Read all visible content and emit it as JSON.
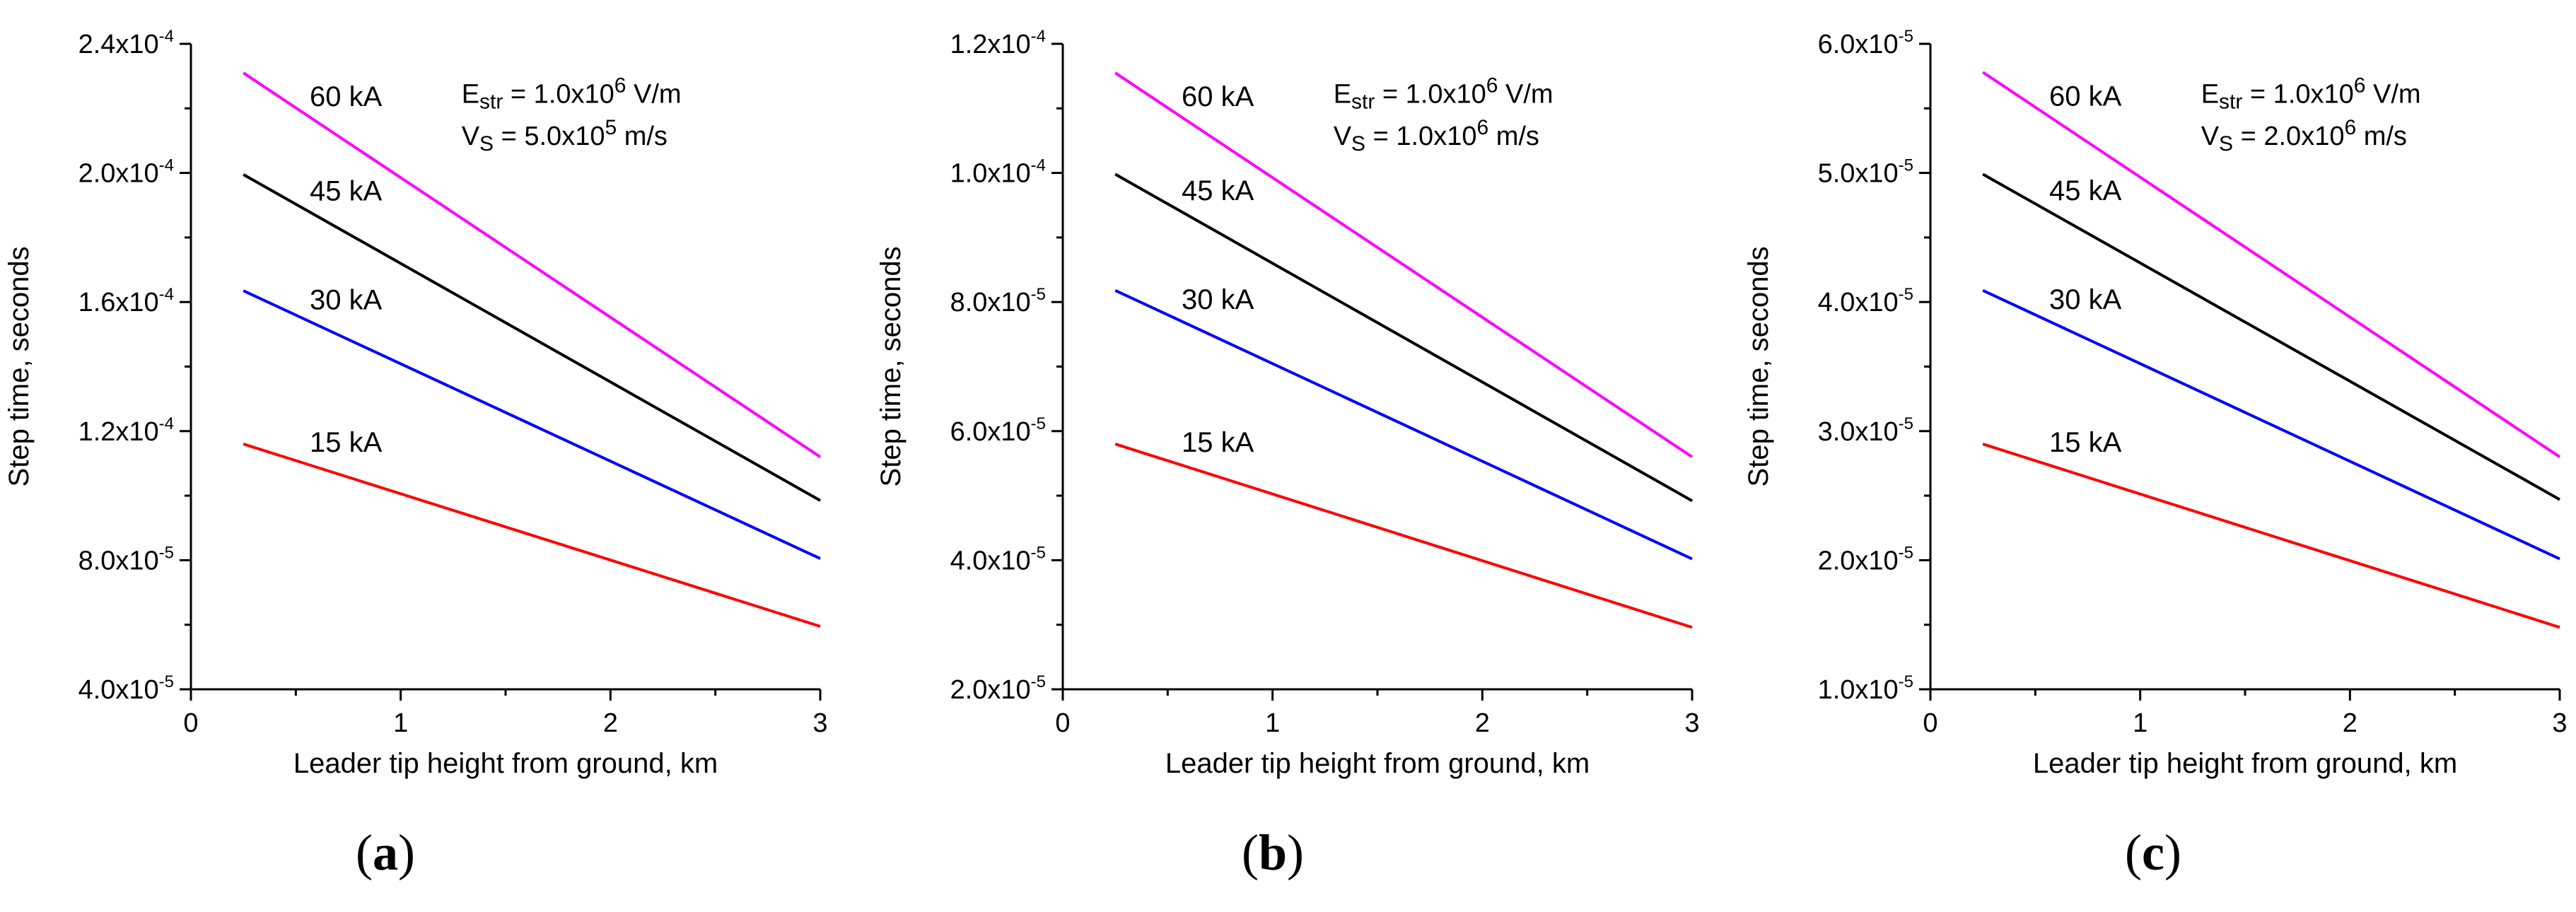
{
  "chart_data": [
    {
      "type": "line",
      "caption_letter": "a",
      "xlabel": "Leader tip height from ground, km",
      "ylabel": "Step time, seconds",
      "xlim": [
        0,
        3
      ],
      "ylim": [
        4e-05,
        0.00024
      ],
      "x_ticks": [
        0,
        1,
        2,
        3
      ],
      "x_tick_labels": [
        "0",
        "1",
        "2",
        "3"
      ],
      "y_ticks": [
        {
          "value": 4e-05,
          "mantissa": "4.0x10",
          "exp": "-5"
        },
        {
          "value": 8e-05,
          "mantissa": "8.0x10",
          "exp": "-5"
        },
        {
          "value": 0.00012,
          "mantissa": "1.2x10",
          "exp": "-4"
        },
        {
          "value": 0.00016,
          "mantissa": "1.6x10",
          "exp": "-4"
        },
        {
          "value": 0.0002,
          "mantissa": "2.0x10",
          "exp": "-4"
        },
        {
          "value": 0.00024,
          "mantissa": "2.4x10",
          "exp": "-4"
        }
      ],
      "annotation": {
        "line1": {
          "var": "E",
          "sub": "str",
          "text": " = 1.0x10",
          "exp": "6",
          "unit": " V/m"
        },
        "line2": {
          "var": "V",
          "sub": "S",
          "text": " = 5.0x10",
          "exp": "5",
          "unit": " m/s"
        }
      },
      "series": [
        {
          "name": "60 kA",
          "color": "#ff00ff",
          "x": [
            0.25,
            3
          ],
          "y": [
            0.000231,
            0.000112
          ]
        },
        {
          "name": "45 kA",
          "color": "#000000",
          "x": [
            0.25,
            3
          ],
          "y": [
            0.0001995,
            9.85e-05
          ]
        },
        {
          "name": "30 kA",
          "color": "#0000ff",
          "x": [
            0.25,
            3
          ],
          "y": [
            0.0001635,
            8.05e-05
          ]
        },
        {
          "name": "15 kA",
          "color": "#ff0000",
          "x": [
            0.25,
            3
          ],
          "y": [
            0.000116,
            5.95e-05
          ]
        }
      ]
    },
    {
      "type": "line",
      "caption_letter": "b",
      "xlabel": "Leader tip height from ground, km",
      "ylabel": "Step time, seconds",
      "xlim": [
        0,
        3
      ],
      "ylim": [
        2e-05,
        0.00012
      ],
      "x_ticks": [
        0,
        1,
        2,
        3
      ],
      "x_tick_labels": [
        "0",
        "1",
        "2",
        "3"
      ],
      "y_ticks": [
        {
          "value": 2e-05,
          "mantissa": "2.0x10",
          "exp": "-5"
        },
        {
          "value": 4e-05,
          "mantissa": "4.0x10",
          "exp": "-5"
        },
        {
          "value": 6e-05,
          "mantissa": "6.0x10",
          "exp": "-5"
        },
        {
          "value": 8e-05,
          "mantissa": "8.0x10",
          "exp": "-5"
        },
        {
          "value": 0.0001,
          "mantissa": "1.0x10",
          "exp": "-4"
        },
        {
          "value": 0.00012,
          "mantissa": "1.2x10",
          "exp": "-4"
        }
      ],
      "annotation": {
        "line1": {
          "var": "E",
          "sub": "str",
          "text": " = 1.0x10",
          "exp": "6",
          "unit": " V/m"
        },
        "line2": {
          "var": "V",
          "sub": "S",
          "text": " = 1.0x10",
          "exp": "6",
          "unit": " m/s"
        }
      },
      "series": [
        {
          "name": "60 kA",
          "color": "#ff00ff",
          "x": [
            0.25,
            3
          ],
          "y": [
            0.0001155,
            5.6e-05
          ]
        },
        {
          "name": "45 kA",
          "color": "#000000",
          "x": [
            0.25,
            3
          ],
          "y": [
            9.98e-05,
            4.92e-05
          ]
        },
        {
          "name": "30 kA",
          "color": "#0000ff",
          "x": [
            0.25,
            3
          ],
          "y": [
            8.18e-05,
            4.02e-05
          ]
        },
        {
          "name": "15 kA",
          "color": "#ff0000",
          "x": [
            0.25,
            3
          ],
          "y": [
            5.8e-05,
            2.96e-05
          ]
        }
      ]
    },
    {
      "type": "line",
      "caption_letter": "c",
      "xlabel": "Leader tip height from ground, km",
      "ylabel": "Step time, seconds",
      "xlim": [
        0,
        3
      ],
      "ylim": [
        1e-05,
        6e-05
      ],
      "x_ticks": [
        0,
        1,
        2,
        3
      ],
      "x_tick_labels": [
        "0",
        "1",
        "2",
        "3"
      ],
      "y_ticks": [
        {
          "value": 1e-05,
          "mantissa": "1.0x10",
          "exp": "-5"
        },
        {
          "value": 2e-05,
          "mantissa": "2.0x10",
          "exp": "-5"
        },
        {
          "value": 3e-05,
          "mantissa": "3.0x10",
          "exp": "-5"
        },
        {
          "value": 4e-05,
          "mantissa": "4.0x10",
          "exp": "-5"
        },
        {
          "value": 5e-05,
          "mantissa": "5.0x10",
          "exp": "-5"
        },
        {
          "value": 6e-05,
          "mantissa": "6.0x10",
          "exp": "-5"
        }
      ],
      "annotation": {
        "line1": {
          "var": "E",
          "sub": "str",
          "text": " = 1.0x10",
          "exp": "6",
          "unit": " V/m"
        },
        "line2": {
          "var": "V",
          "sub": "S",
          "text": " = 2.0x10",
          "exp": "6",
          "unit": " m/s"
        }
      },
      "series": [
        {
          "name": "60 kA",
          "color": "#ff00ff",
          "x": [
            0.25,
            3
          ],
          "y": [
            5.78e-05,
            2.8e-05
          ]
        },
        {
          "name": "45 kA",
          "color": "#000000",
          "x": [
            0.25,
            3
          ],
          "y": [
            4.99e-05,
            2.47e-05
          ]
        },
        {
          "name": "30 kA",
          "color": "#0000ff",
          "x": [
            0.25,
            3
          ],
          "y": [
            4.09e-05,
            2.01e-05
          ]
        },
        {
          "name": "15 kA",
          "color": "#ff0000",
          "x": [
            0.25,
            3
          ],
          "y": [
            2.9e-05,
            1.48e-05
          ]
        }
      ]
    }
  ]
}
